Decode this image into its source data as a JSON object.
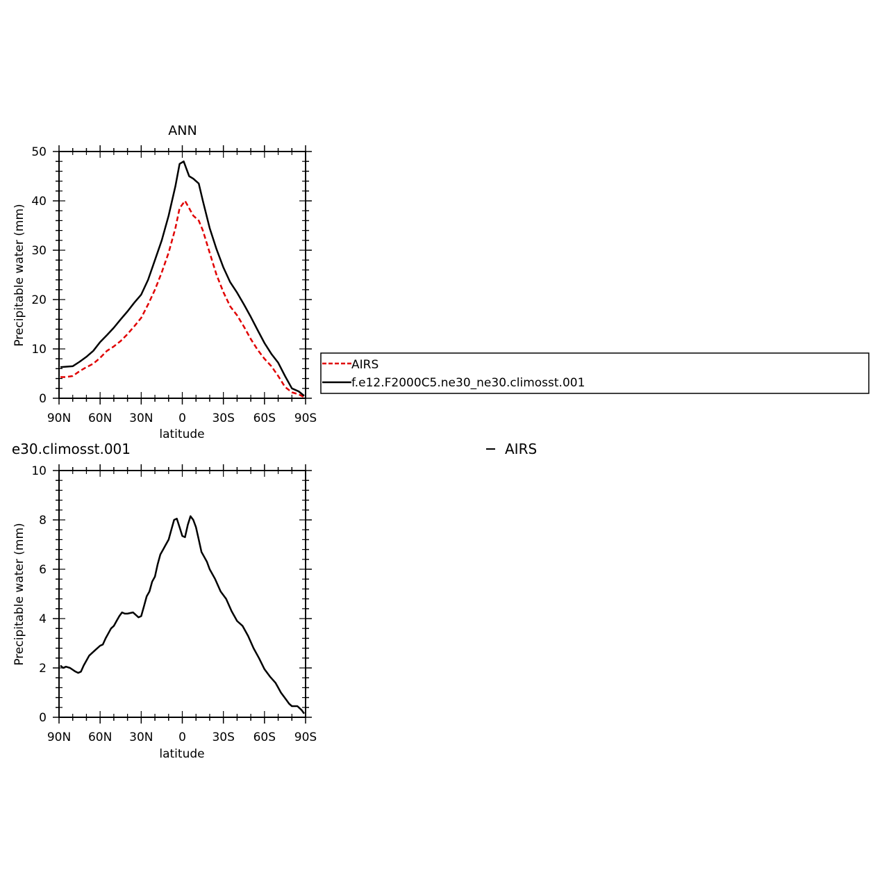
{
  "chart_data": [
    {
      "type": "line",
      "title": "ANN",
      "xlabel": "latitude",
      "ylabel": "Precipitable water (mm)",
      "xlim": [
        90,
        -90
      ],
      "ylim": [
        0,
        50
      ],
      "x_ticks": [
        "90N",
        "60N",
        "30N",
        "0",
        "30S",
        "60S",
        "90S"
      ],
      "y_ticks": [
        "0",
        "10",
        "20",
        "30",
        "40",
        "50"
      ],
      "series": [
        {
          "name": "AIRS",
          "color": "#e00000",
          "style": "dashed",
          "points": [
            [
              89,
              4.3
            ],
            [
              85,
              4.3
            ],
            [
              80,
              4.5
            ],
            [
              75,
              5.5
            ],
            [
              70,
              6.3
            ],
            [
              65,
              7.0
            ],
            [
              60,
              8.2
            ],
            [
              55,
              9.6
            ],
            [
              50,
              10.5
            ],
            [
              45,
              11.6
            ],
            [
              40,
              13.0
            ],
            [
              35,
              14.6
            ],
            [
              30,
              16.3
            ],
            [
              25,
              19.0
            ],
            [
              20,
              22.0
            ],
            [
              15,
              25.5
            ],
            [
              10,
              29.5
            ],
            [
              5,
              34.5
            ],
            [
              2,
              38.5
            ],
            [
              -2,
              40.0
            ],
            [
              -5,
              38.5
            ],
            [
              -8,
              37.0
            ],
            [
              -12,
              36.0
            ],
            [
              -15,
              34.0
            ],
            [
              -20,
              29.5
            ],
            [
              -25,
              25.0
            ],
            [
              -30,
              21.5
            ],
            [
              -35,
              18.6
            ],
            [
              -40,
              16.8
            ],
            [
              -45,
              14.5
            ],
            [
              -50,
              12.0
            ],
            [
              -55,
              9.8
            ],
            [
              -60,
              8.0
            ],
            [
              -65,
              6.5
            ],
            [
              -70,
              4.5
            ],
            [
              -75,
              2.3
            ],
            [
              -80,
              1.2
            ],
            [
              -85,
              0.8
            ],
            [
              -89,
              0.2
            ]
          ]
        },
        {
          "name": "f.e12.F2000C5.ne30_ne30.climosst.001",
          "color": "#000000",
          "style": "solid",
          "points": [
            [
              89,
              6.3
            ],
            [
              85,
              6.4
            ],
            [
              80,
              6.5
            ],
            [
              75,
              7.4
            ],
            [
              70,
              8.4
            ],
            [
              65,
              9.6
            ],
            [
              60,
              11.4
            ],
            [
              55,
              12.8
            ],
            [
              50,
              14.3
            ],
            [
              45,
              16.0
            ],
            [
              40,
              17.6
            ],
            [
              35,
              19.4
            ],
            [
              30,
              21.0
            ],
            [
              25,
              24.0
            ],
            [
              20,
              28.0
            ],
            [
              15,
              32.0
            ],
            [
              10,
              37.0
            ],
            [
              5,
              43.0
            ],
            [
              2,
              47.5
            ],
            [
              -1,
              48.0
            ],
            [
              -3,
              46.5
            ],
            [
              -5,
              45.0
            ],
            [
              -8,
              44.5
            ],
            [
              -12,
              43.5
            ],
            [
              -15,
              40.0
            ],
            [
              -20,
              34.5
            ],
            [
              -25,
              30.2
            ],
            [
              -30,
              26.5
            ],
            [
              -35,
              23.5
            ],
            [
              -40,
              21.4
            ],
            [
              -45,
              19.0
            ],
            [
              -50,
              16.5
            ],
            [
              -55,
              13.8
            ],
            [
              -60,
              11.2
            ],
            [
              -65,
              9.0
            ],
            [
              -70,
              7.2
            ],
            [
              -75,
              4.5
            ],
            [
              -80,
              2.0
            ],
            [
              -85,
              1.4
            ],
            [
              -89,
              0.5
            ]
          ]
        }
      ]
    },
    {
      "type": "line",
      "title": "e30.climosst.001",
      "title_right": "AIRS",
      "xlabel": "latitude",
      "ylabel": "Precipitable water (mm)",
      "xlim": [
        90,
        -90
      ],
      "ylim": [
        0,
        10
      ],
      "x_ticks": [
        "90N",
        "60N",
        "30N",
        "0",
        "30S",
        "60S",
        "90S"
      ],
      "y_ticks": [
        "0",
        "2",
        "4",
        "6",
        "8",
        "10"
      ],
      "series": [
        {
          "color": "#000000",
          "style": "solid",
          "points": [
            [
              89,
              2.1
            ],
            [
              87,
              2.0
            ],
            [
              85,
              2.05
            ],
            [
              82,
              2.0
            ],
            [
              78,
              1.85
            ],
            [
              76,
              1.8
            ],
            [
              74,
              1.85
            ],
            [
              72,
              2.1
            ],
            [
              68,
              2.5
            ],
            [
              64,
              2.7
            ],
            [
              60,
              2.9
            ],
            [
              58,
              2.95
            ],
            [
              56,
              3.2
            ],
            [
              54,
              3.4
            ],
            [
              52,
              3.6
            ],
            [
              50,
              3.7
            ],
            [
              48,
              3.9
            ],
            [
              46,
              4.1
            ],
            [
              44,
              4.25
            ],
            [
              42,
              4.2
            ],
            [
              40,
              4.2
            ],
            [
              36,
              4.25
            ],
            [
              32,
              4.05
            ],
            [
              30,
              4.1
            ],
            [
              28,
              4.5
            ],
            [
              26,
              4.9
            ],
            [
              24,
              5.1
            ],
            [
              22,
              5.5
            ],
            [
              20,
              5.7
            ],
            [
              18,
              6.2
            ],
            [
              16,
              6.6
            ],
            [
              14,
              6.8
            ],
            [
              12,
              7.0
            ],
            [
              10,
              7.2
            ],
            [
              8,
              7.6
            ],
            [
              6,
              8.0
            ],
            [
              4,
              8.05
            ],
            [
              2,
              7.7
            ],
            [
              0,
              7.35
            ],
            [
              -2,
              7.3
            ],
            [
              -4,
              7.8
            ],
            [
              -6,
              8.15
            ],
            [
              -8,
              8.0
            ],
            [
              -10,
              7.7
            ],
            [
              -12,
              7.2
            ],
            [
              -14,
              6.7
            ],
            [
              -16,
              6.5
            ],
            [
              -18,
              6.3
            ],
            [
              -20,
              6.0
            ],
            [
              -24,
              5.6
            ],
            [
              -28,
              5.1
            ],
            [
              -32,
              4.8
            ],
            [
              -36,
              4.3
            ],
            [
              -40,
              3.9
            ],
            [
              -44,
              3.7
            ],
            [
              -48,
              3.3
            ],
            [
              -52,
              2.8
            ],
            [
              -56,
              2.4
            ],
            [
              -60,
              1.95
            ],
            [
              -64,
              1.65
            ],
            [
              -68,
              1.4
            ],
            [
              -70,
              1.2
            ],
            [
              -72,
              1.0
            ],
            [
              -76,
              0.7
            ],
            [
              -78,
              0.55
            ],
            [
              -80,
              0.45
            ],
            [
              -84,
              0.45
            ],
            [
              -87,
              0.3
            ],
            [
              -89,
              0.15
            ]
          ]
        }
      ]
    }
  ],
  "legend": {
    "items": [
      {
        "label": "AIRS",
        "color": "#e00000",
        "style": "dashed"
      },
      {
        "label": "f.e12.F2000C5.ne30_ne30.climosst.001",
        "color": "#000000",
        "style": "solid"
      }
    ]
  }
}
